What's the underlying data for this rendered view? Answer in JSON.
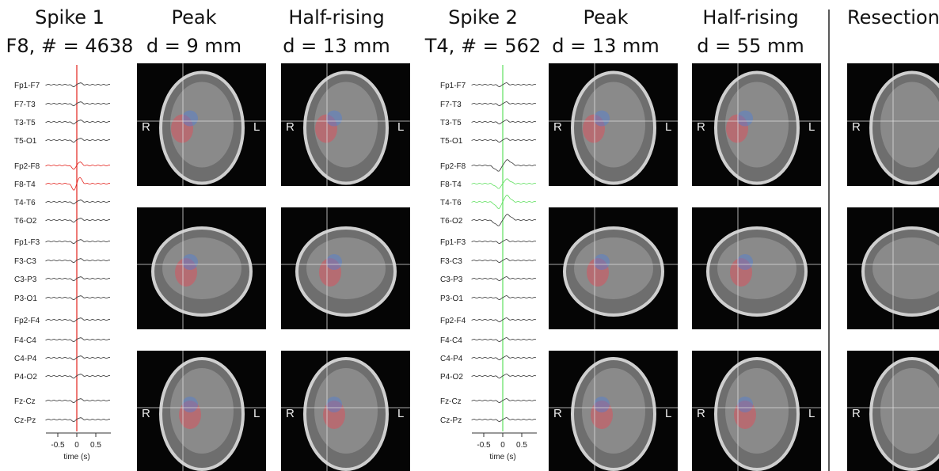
{
  "columns": [
    {
      "title": "Spike 1",
      "subtitle": "F8, # = 4638"
    },
    {
      "title": "Peak",
      "subtitle": "d = 9 mm"
    },
    {
      "title": "Half-rising",
      "subtitle": "d = 13 mm"
    },
    {
      "title": "Spike 2",
      "subtitle": "T4, # = 562"
    },
    {
      "title": "Peak",
      "subtitle": "d = 13 mm"
    },
    {
      "title": "Half-rising",
      "subtitle": "d = 55 mm"
    },
    {
      "title": "Resection"
    }
  ],
  "eeg": {
    "channels": [
      "Fp1-F7",
      "F7-T3",
      "T3-T5",
      "T5-O1",
      "Fp2-F8",
      "F8-T4",
      "T4-T6",
      "T6-O2",
      "Fp1-F3",
      "F3-C3",
      "C3-P3",
      "P3-O1",
      "Fp2-F4",
      "F4-C4",
      "C4-P4",
      "P4-O2",
      "Fz-Cz",
      "Cz-Pz"
    ],
    "xlim": [
      -0.75,
      0.75
    ],
    "xticks": [
      -0.5,
      0,
      0.5
    ],
    "xlabel": "time (s)",
    "cursor_colors": [
      "#e3221c",
      "#5fe05f"
    ]
  },
  "image_labels": {
    "right": "R",
    "left": "L"
  }
}
